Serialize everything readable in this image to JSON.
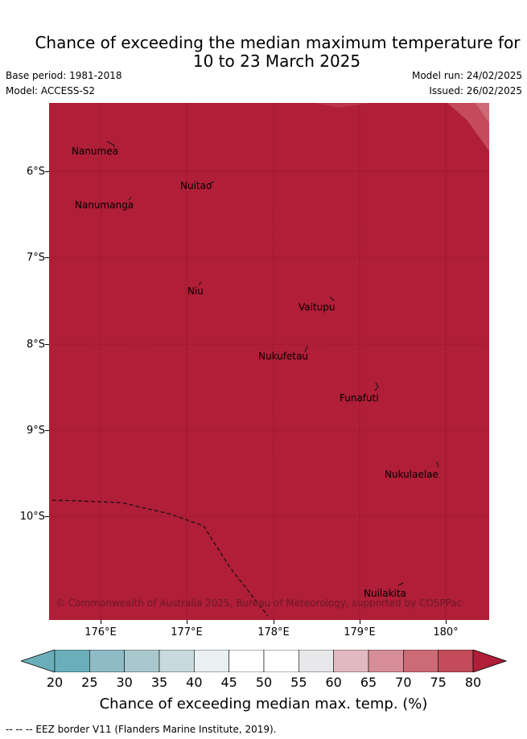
{
  "title_line1": "Chance of exceeding the median maximum temperature for",
  "title_line2": "10 to 23 March 2025",
  "base_period": "Base period: 1981-2018",
  "model": "Model: ACCESS-S2",
  "model_run": "Model run: 24/02/2025",
  "issued": "Issued: 26/02/2025",
  "lat_labels": [
    "6°S",
    "7°S",
    "8°S",
    "9°S",
    "10°S"
  ],
  "lon_labels": [
    "176°E",
    "177°E",
    "178°E",
    "179°E",
    "180°"
  ],
  "islands": [
    "Nanumea",
    "Nuitao",
    "Nanumanga",
    "Niu",
    "Vaitupu",
    "Nukufetau",
    "Funafuti",
    "Nukulaelae",
    "Nuilakita"
  ],
  "copyright": "© Commonwealth of Australia 2025, Bureau of Meteorology, supported by COSPPac",
  "colorbar": {
    "tick_labels": [
      "20",
      "25",
      "30",
      "35",
      "40",
      "45",
      "50",
      "55",
      "60",
      "65",
      "70",
      "75",
      "80"
    ],
    "colors": [
      "#6aaeba",
      "#8fbbc6",
      "#a9c8cd",
      "#c9d9dd",
      "#eaf0f2",
      "#ffffff",
      "#ffffff",
      "#e8e8ea",
      "#e2b9c0",
      "#d78e98",
      "#cc6a76",
      "#c44b5a",
      "#b01e37"
    ],
    "low_extend_color": "#6aaeba",
    "high_extend_color": "#b01e37",
    "label": "Chance of exceeding median max. temp. (%)"
  },
  "map_colors": {
    "dominant": "#b01e37",
    "lighter_patch": "#c44b5a",
    "lightest_patch": "#cc6a76"
  },
  "legend_text": "-- -- -- EEZ border V11 (Flanders Marine Institute, 2019)."
}
